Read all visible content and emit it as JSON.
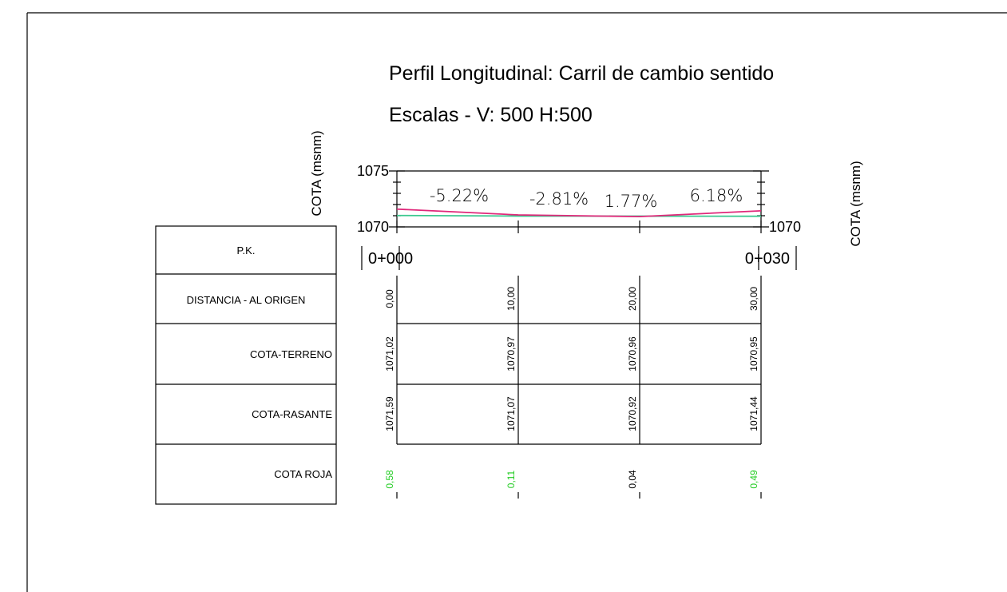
{
  "chart_data": {
    "type": "line",
    "title": "Perfil Longitudinal: Carril de cambio sentido",
    "subtitle": "Escalas - V: 500 H:500",
    "y_label": "COTA (msnm)",
    "ylim": [
      1070,
      1075
    ],
    "yticks": [
      1070,
      1075
    ],
    "xlim": [
      0,
      30
    ],
    "x": [
      0,
      10,
      20,
      30
    ],
    "x_labels": [
      "0,00",
      "10,00",
      "20,00",
      "30,00"
    ],
    "pk_labels": [
      "0+000",
      "0+030"
    ],
    "row_labels": [
      "P.K.",
      "DISTANCIA - AL ORIGEN"
    ],
    "series": [
      {
        "name": "COTA-TERRENO",
        "color": "#3cc98f",
        "values": [
          1071.02,
          1070.97,
          1070.96,
          1070.95
        ],
        "value_labels": [
          "1071,02",
          "1070,97",
          "1070,96",
          "1070,95"
        ]
      },
      {
        "name": "COTA-RASANTE",
        "color": "#e0287a",
        "values": [
          1071.59,
          1071.07,
          1070.92,
          1071.44
        ],
        "value_labels": [
          "1071,59",
          "1071,07",
          "1070,92",
          "1071,44"
        ]
      }
    ],
    "cota_roja": {
      "name": "COTA ROJA",
      "values": [
        0.58,
        0.11,
        0.04,
        0.49
      ],
      "value_labels": [
        "0,58",
        "0,11",
        "0,04",
        "0,49"
      ],
      "colors": [
        "#22cc22",
        "#22cc22",
        "#000000",
        "#22cc22"
      ]
    },
    "annotations": [
      "-5.22%",
      "-2.81%",
      "1.77%",
      "6.18%"
    ]
  }
}
